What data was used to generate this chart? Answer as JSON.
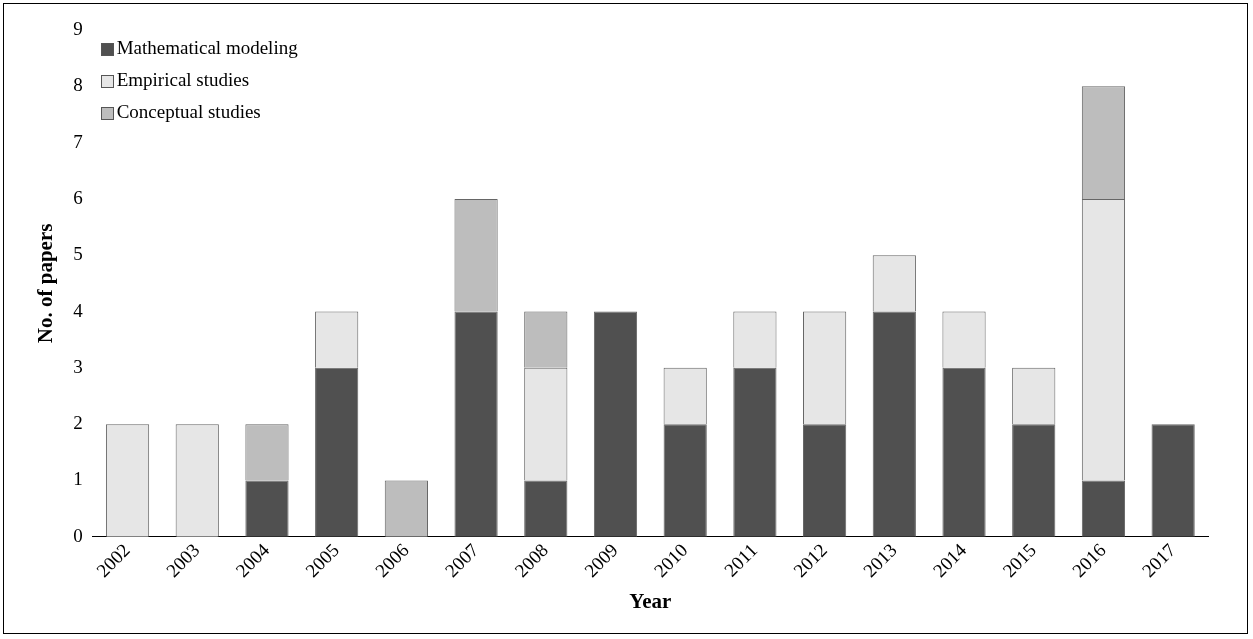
{
  "chart_data": {
    "type": "bar",
    "xlabel": "Year",
    "ylabel": "No. of papers",
    "categories": [
      "2002",
      "2003",
      "2004",
      "2005",
      "2006",
      "2007",
      "2008",
      "2009",
      "2010",
      "2011",
      "2012",
      "2013",
      "2014",
      "2015",
      "2016",
      "2017"
    ],
    "series": [
      {
        "name": "Mathematical modeling",
        "color": "#505050",
        "values": [
          0,
          0,
          1,
          3,
          0,
          4,
          1,
          4,
          2,
          3,
          2,
          4,
          3,
          2,
          1,
          2
        ]
      },
      {
        "name": "Empirical studies",
        "color": "#e6e6e6",
        "values": [
          2,
          2,
          0,
          1,
          0,
          0,
          2,
          0,
          1,
          1,
          2,
          1,
          1,
          1,
          5,
          0
        ]
      },
      {
        "name": "Conceptual studies",
        "color": "#bdbdbd",
        "values": [
          0,
          0,
          1,
          0,
          1,
          2,
          1,
          0,
          0,
          0,
          0,
          0,
          0,
          0,
          2,
          0
        ]
      }
    ],
    "stacked": true,
    "ylim": [
      0,
      9
    ],
    "yticks": [
      0,
      1,
      2,
      3,
      4,
      5,
      6,
      7,
      8,
      9
    ],
    "grid": false,
    "legend": "top left"
  }
}
